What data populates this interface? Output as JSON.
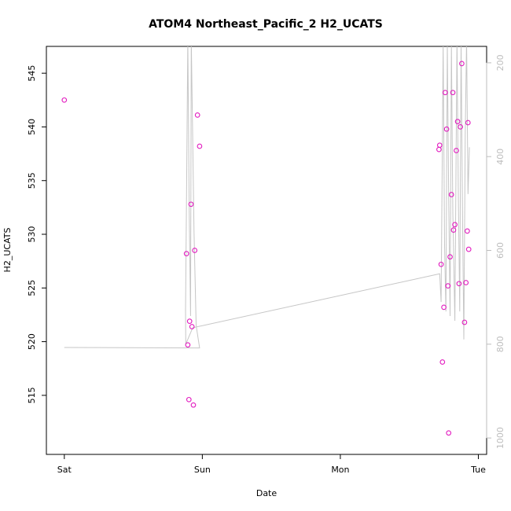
{
  "chart_data": {
    "type": "scatter",
    "title": "ATOM4 Northeast_Pacific_2 H2_UCATS",
    "xlabel": "Date",
    "ylabel": "H2_UCATS",
    "x_ticks": [
      {
        "label": "Sat",
        "value": 0
      },
      {
        "label": "Sun",
        "value": 1
      },
      {
        "label": "Mon",
        "value": 2
      },
      {
        "label": "Tue",
        "value": 3
      }
    ],
    "y_ticks": [
      515,
      520,
      525,
      530,
      535,
      540,
      545
    ],
    "xlim": [
      -0.13,
      3.06
    ],
    "ylim": [
      509.5,
      547.5
    ],
    "right_axis": {
      "ticks": [
        200,
        400,
        600,
        800,
        1000
      ],
      "range": [
        1035,
        165
      ],
      "color": "#bdbdbd"
    },
    "series": [
      {
        "color": "#e21bbf",
        "points": [
          {
            "x": 0.0,
            "y": 542.5
          },
          {
            "x": 0.885,
            "y": 528.2
          },
          {
            "x": 0.895,
            "y": 519.7
          },
          {
            "x": 0.903,
            "y": 514.6
          },
          {
            "x": 0.908,
            "y": 521.9
          },
          {
            "x": 0.918,
            "y": 532.8
          },
          {
            "x": 0.925,
            "y": 521.4
          },
          {
            "x": 0.935,
            "y": 514.1
          },
          {
            "x": 0.945,
            "y": 528.5
          },
          {
            "x": 0.965,
            "y": 541.1
          },
          {
            "x": 0.98,
            "y": 538.2
          },
          {
            "x": 2.715,
            "y": 537.9
          },
          {
            "x": 2.72,
            "y": 538.3
          },
          {
            "x": 2.73,
            "y": 527.2
          },
          {
            "x": 2.74,
            "y": 518.1
          },
          {
            "x": 2.75,
            "y": 523.2
          },
          {
            "x": 2.76,
            "y": 543.2
          },
          {
            "x": 2.77,
            "y": 539.8
          },
          {
            "x": 2.78,
            "y": 525.2
          },
          {
            "x": 2.785,
            "y": 511.5
          },
          {
            "x": 2.795,
            "y": 527.9
          },
          {
            "x": 2.805,
            "y": 533.7
          },
          {
            "x": 2.815,
            "y": 543.2
          },
          {
            "x": 2.82,
            "y": 530.4
          },
          {
            "x": 2.83,
            "y": 530.9
          },
          {
            "x": 2.84,
            "y": 537.8
          },
          {
            "x": 2.85,
            "y": 540.5
          },
          {
            "x": 2.86,
            "y": 525.4
          },
          {
            "x": 2.87,
            "y": 540.0
          },
          {
            "x": 2.88,
            "y": 545.9
          },
          {
            "x": 2.9,
            "y": 521.8
          },
          {
            "x": 2.91,
            "y": 525.5
          },
          {
            "x": 2.92,
            "y": 530.3
          },
          {
            "x": 2.925,
            "y": 540.4
          },
          {
            "x": 2.93,
            "y": 528.6
          }
        ]
      }
    ],
    "altitude_track": [
      {
        "x": 0.0,
        "alt": 807
      },
      {
        "x": 0.98,
        "alt": 808
      },
      {
        "x": 0.955,
        "alt": 760
      },
      {
        "x": 0.94,
        "alt": 560
      },
      {
        "x": 0.92,
        "alt": 150
      },
      {
        "x": 0.915,
        "alt": 740
      },
      {
        "x": 0.905,
        "alt": 520
      },
      {
        "x": 0.895,
        "alt": 150
      },
      {
        "x": 0.885,
        "alt": 500
      },
      {
        "x": 0.878,
        "alt": 728
      },
      {
        "x": 0.88,
        "alt": 800
      },
      {
        "x": 0.93,
        "alt": 765
      },
      {
        "x": 2.72,
        "alt": 650
      },
      {
        "x": 2.73,
        "alt": 710
      },
      {
        "x": 2.745,
        "alt": 160
      },
      {
        "x": 2.755,
        "alt": 590
      },
      {
        "x": 2.765,
        "alt": 730
      },
      {
        "x": 2.775,
        "alt": 160
      },
      {
        "x": 2.785,
        "alt": 480
      },
      {
        "x": 2.795,
        "alt": 740
      },
      {
        "x": 2.805,
        "alt": 160
      },
      {
        "x": 2.815,
        "alt": 520
      },
      {
        "x": 2.83,
        "alt": 750
      },
      {
        "x": 2.845,
        "alt": 150
      },
      {
        "x": 2.855,
        "alt": 480
      },
      {
        "x": 2.865,
        "alt": 730
      },
      {
        "x": 2.875,
        "alt": 150
      },
      {
        "x": 2.885,
        "alt": 520
      },
      {
        "x": 2.895,
        "alt": 790
      },
      {
        "x": 2.905,
        "alt": 350
      },
      {
        "x": 2.915,
        "alt": 150
      },
      {
        "x": 2.925,
        "alt": 480
      },
      {
        "x": 2.935,
        "alt": 380
      }
    ]
  }
}
